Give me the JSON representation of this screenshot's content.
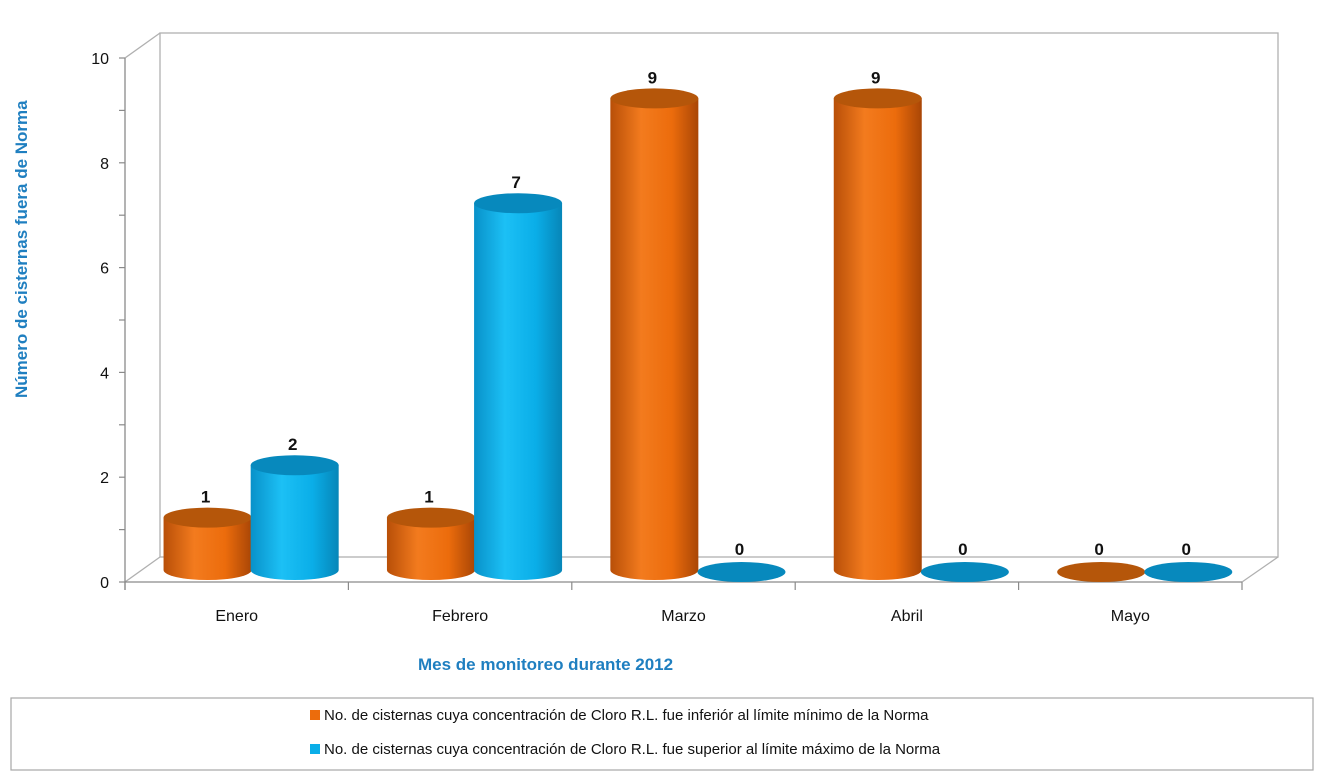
{
  "chart_data": {
    "type": "bar",
    "style": "3d-cylinder",
    "categories": [
      "Enero",
      "Febrero",
      "Marzo",
      "Abril",
      "Mayo"
    ],
    "series": [
      {
        "name": "No. de cisternas cuya concentración de Cloro R.L. fue inferiór al límite mínimo de la Norma",
        "color": "#ec6c0c",
        "values": [
          1,
          1,
          9,
          9,
          0
        ]
      },
      {
        "name": "No. de cisternas cuya concentración de Cloro R.L. fue superior al límite máximo de la Norma",
        "color": "#0aaee8",
        "values": [
          2,
          7,
          0,
          0,
          0
        ]
      }
    ],
    "title": "",
    "xlabel": "Mes de monitoreo durante 2012",
    "ylabel": "Número de cisternas fuera de Norma",
    "ylim": [
      0,
      10
    ],
    "yticks": [
      0,
      2,
      4,
      6,
      8,
      10
    ],
    "grid": false,
    "legend_position": "bottom"
  }
}
